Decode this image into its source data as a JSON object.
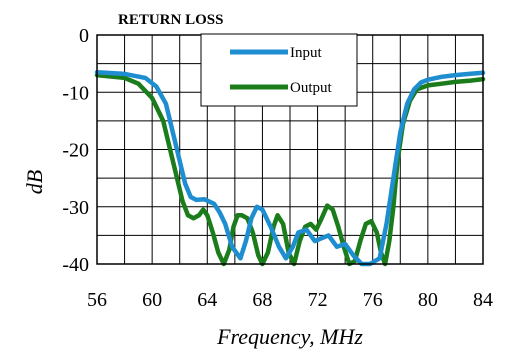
{
  "chart_data": {
    "type": "line",
    "title": "RETURN LOSS",
    "xlabel": "Frequency, MHz",
    "ylabel": "dB",
    "xlim": [
      56,
      84
    ],
    "ylim": [
      -40,
      0
    ],
    "xticks": [
      56,
      60,
      64,
      68,
      72,
      76,
      80,
      84
    ],
    "yticks": [
      0,
      -10,
      -20,
      -30,
      -40
    ],
    "grid": true,
    "legend_position": "top-center",
    "series": [
      {
        "name": "Input",
        "color": "#1f8ed0",
        "x": [
          56,
          58,
          59.5,
          60.3,
          61,
          61.5,
          62,
          62.4,
          62.8,
          63.2,
          63.8,
          64.5,
          64.9,
          65.3,
          65.8,
          66.4,
          66.8,
          67.2,
          67.6,
          68,
          68.6,
          69.2,
          69.7,
          70.2,
          70.6,
          71.2,
          71.8,
          72.3,
          72.8,
          73.4,
          74,
          74.6,
          75.2,
          75.8,
          76.5,
          77,
          77.5,
          78,
          78.5,
          79,
          79.5,
          80,
          81,
          82,
          83,
          84
        ],
        "y": [
          -6.5,
          -6.8,
          -7.5,
          -9,
          -12,
          -17,
          -22,
          -26,
          -28.3,
          -28.8,
          -28.7,
          -29.5,
          -31,
          -33,
          -37,
          -39,
          -36,
          -32,
          -30,
          -30.5,
          -33.5,
          -37,
          -39,
          -37,
          -34.5,
          -34,
          -36,
          -35.5,
          -35,
          -37,
          -36.5,
          -38.5,
          -40,
          -40,
          -39,
          -33,
          -25,
          -17,
          -12,
          -9.5,
          -8.3,
          -7.8,
          -7.3,
          -7,
          -6.8,
          -6.6
        ]
      },
      {
        "name": "Output",
        "color": "#1b7c1b",
        "x": [
          56,
          58,
          59,
          60,
          60.8,
          61.3,
          61.8,
          62.2,
          62.6,
          63,
          63.4,
          63.7,
          64,
          64.4,
          64.8,
          65.2,
          65.6,
          65.9,
          66.2,
          66.5,
          66.9,
          67.3,
          67.7,
          68,
          68.4,
          68.8,
          69.1,
          69.5,
          69.9,
          70.3,
          70.7,
          71.1,
          71.5,
          71.9,
          72.3,
          72.7,
          73.1,
          73.5,
          73.9,
          74.3,
          74.7,
          75.1,
          75.5,
          75.9,
          76.3,
          76.6,
          76.9,
          77.2,
          77.5,
          77.8,
          78.2,
          78.7,
          79.2,
          80,
          81,
          82,
          83,
          84
        ],
        "y": [
          -7,
          -7.5,
          -8.5,
          -11,
          -15,
          -20,
          -25,
          -29,
          -31.5,
          -32,
          -31.5,
          -30.5,
          -31.5,
          -34.5,
          -38,
          -40,
          -37.5,
          -33.5,
          -31.5,
          -31.5,
          -32,
          -34.5,
          -38.5,
          -40,
          -38,
          -33.5,
          -31.5,
          -33,
          -38,
          -40,
          -36,
          -33.5,
          -33,
          -34,
          -32,
          -29.8,
          -30.5,
          -33.5,
          -37,
          -40,
          -39.5,
          -36,
          -33,
          -32.5,
          -34.5,
          -38,
          -40,
          -36,
          -30,
          -22,
          -15.5,
          -11.5,
          -9.5,
          -8.8,
          -8.5,
          -8.2,
          -8,
          -7.7
        ]
      }
    ]
  }
}
